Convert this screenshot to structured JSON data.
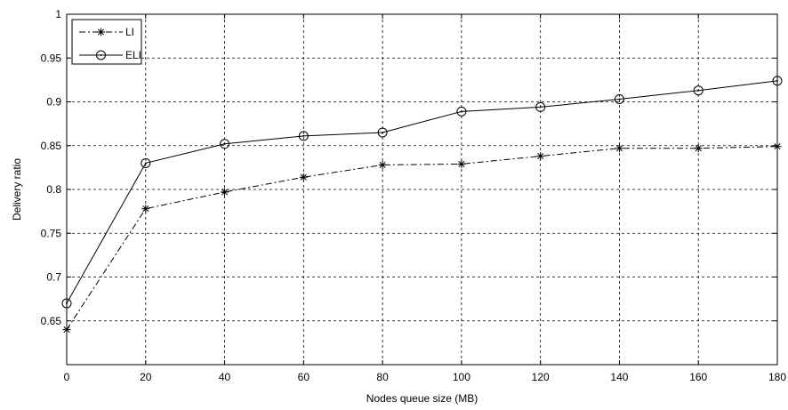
{
  "chart_data": {
    "type": "line",
    "title": "",
    "xlabel": "Nodes queue size (MB)",
    "ylabel": "Delivery ratio",
    "x": [
      0,
      20,
      40,
      60,
      80,
      100,
      120,
      140,
      160,
      180
    ],
    "xlim": [
      0,
      180
    ],
    "ylim": [
      0.6,
      1.0
    ],
    "xticks": [
      "0",
      "20",
      "40",
      "60",
      "80",
      "100",
      "120",
      "140",
      "160",
      "180"
    ],
    "yticks": [
      "0.65",
      "0.7",
      "0.75",
      "0.8",
      "0.85",
      "0.9",
      "0.95",
      "1"
    ],
    "grid": true,
    "legend_position": "top-left",
    "series": [
      {
        "name": "LI",
        "values": [
          0.64,
          0.778,
          0.797,
          0.814,
          0.828,
          0.829,
          0.838,
          0.847,
          0.847,
          0.849
        ],
        "line_style": "dash-dot",
        "marker": "asterisk",
        "color": "#000000"
      },
      {
        "name": "ELI",
        "values": [
          0.67,
          0.83,
          0.852,
          0.861,
          0.865,
          0.889,
          0.894,
          0.903,
          0.913,
          0.924
        ],
        "line_style": "solid",
        "marker": "circle",
        "color": "#000000"
      }
    ]
  }
}
